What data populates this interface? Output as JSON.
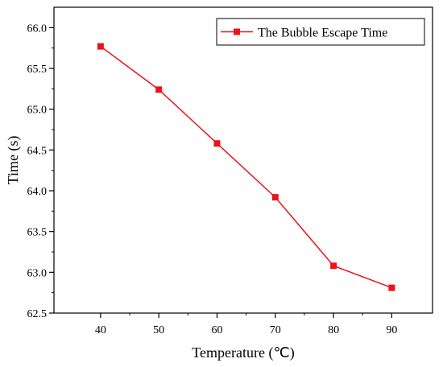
{
  "chart_data": {
    "type": "line",
    "title": "",
    "xlabel": "Temperature (℃)",
    "ylabel": "Time (s)",
    "x": [
      40,
      50,
      60,
      70,
      80,
      90
    ],
    "xticks": [
      "40",
      "50",
      "60",
      "70",
      "80",
      "90"
    ],
    "xlim": [
      32,
      97
    ],
    "yticks": [
      "62.5",
      "63.0",
      "63.5",
      "64.0",
      "64.5",
      "65.0",
      "65.5",
      "66.0"
    ],
    "ylim": [
      62.5,
      66.25
    ],
    "grid": false,
    "legend_position": "top-right",
    "series": [
      {
        "name": "The Bubble Escape Time",
        "values": [
          65.77,
          65.24,
          64.58,
          63.92,
          63.08,
          62.81
        ],
        "color": "#e8151b",
        "marker": "square"
      }
    ]
  }
}
